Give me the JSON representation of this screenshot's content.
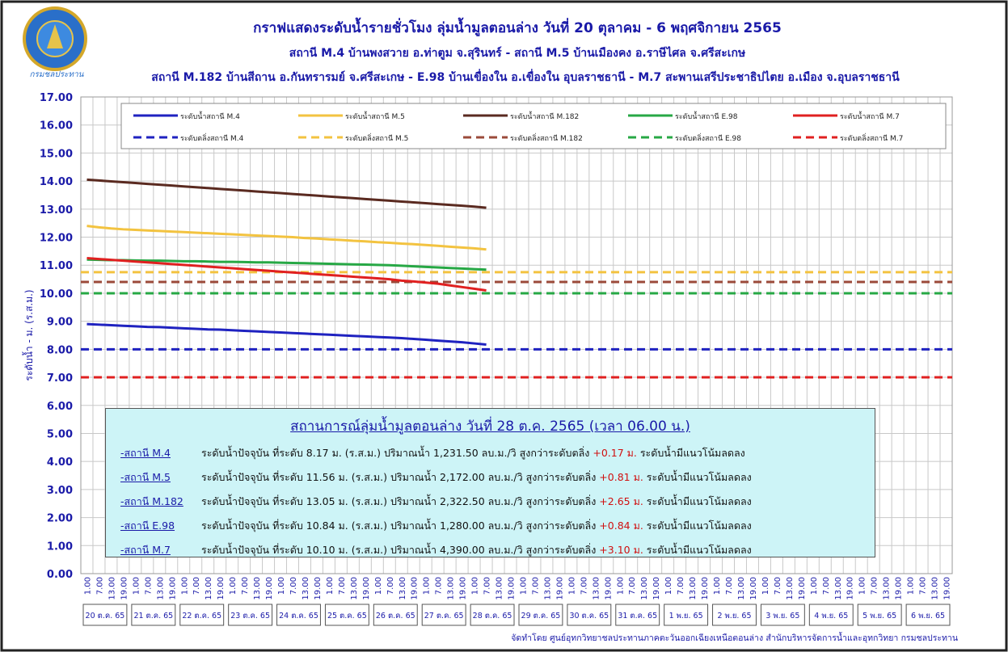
{
  "logo": {
    "text": "กรมชลประทาน"
  },
  "footer": "จัดทำโดย ศูนย์อุทกวิทยาชลประทานภาคตะวันออกเฉียงเหนือตอนล่าง สำนักบริหารจัดการน้ำและอุทกวิทยา กรมชลประทาน",
  "chart_data": {
    "type": "line",
    "title": "กราฟแสดงระดับน้ำรายชั่วโมง ลุ่มน้ำมูลตอนล่าง วันที่ 20 ตุลาคม - 6 พฤศจิกายน 2565",
    "subtitles": [
      "สถานี M.4 บ้านพงสวาย อ.ท่าตูม จ.สุรินทร์ - สถานี M.5 บ้านเมืองคง อ.ราษีไศล จ.ศรีสะเกษ",
      "สถานี M.182 บ้านสีถาน อ.กันทรารมย์ จ.ศรีสะเกษ - E.98 บ้านเขื่องใน อ.เขื่องใน อุบลราชธานี  - M.7 สะพานเสรีประชาธิปไตย อ.เมือง จ.อุบลราชธานี"
    ],
    "y_label": "ระดับน้ำ - ม. (ร.ส.ม.)",
    "categories": [
      "1.00",
      "7.00",
      "13.00",
      "19.00",
      "1.00",
      "7.00",
      "13.00",
      "19.00",
      "1.00",
      "7.00",
      "13.00",
      "19.00",
      "1.00",
      "7.00",
      "13.00",
      "19.00",
      "1.00",
      "7.00",
      "13.00",
      "19.00",
      "1.00",
      "7.00",
      "13.00",
      "19.00",
      "1.00",
      "7.00",
      "13.00",
      "19.00",
      "1.00",
      "7.00",
      "13.00",
      "19.00",
      "1.00",
      "7.00",
      "13.00",
      "19.00",
      "1.00",
      "7.00",
      "13.00",
      "19.00",
      "1.00",
      "7.00",
      "13.00",
      "19.00",
      "1.00",
      "7.00",
      "13.00",
      "19.00",
      "1.00",
      "7.00",
      "13.00",
      "19.00",
      "1.00",
      "7.00",
      "13.00",
      "19.00",
      "1.00",
      "7.00",
      "13.00",
      "19.00",
      "1.00",
      "7.00",
      "13.00",
      "19.00",
      "1.00",
      "7.00",
      "13.00",
      "19.00",
      "1.00",
      "7.00",
      "13.00",
      "19.00"
    ],
    "days": [
      "20 ต.ค. 65",
      "21 ต.ค. 65",
      "22 ต.ค. 65",
      "23 ต.ค. 65",
      "24 ต.ค. 65",
      "25 ต.ค. 65",
      "26 ต.ค. 65",
      "27 ต.ค. 65",
      "28 ต.ค. 65",
      "29 ต.ค. 65",
      "30 ต.ค. 65",
      "31 ต.ค. 65",
      "1 พ.ย. 65",
      "2 พ.ย. 65",
      "3 พ.ย. 65",
      "4 พ.ย. 65",
      "5 พ.ย. 65",
      "6 พ.ย. 65"
    ],
    "ylim": [
      0,
      17
    ],
    "yticks": [
      {
        "value": 0,
        "label": "0.00"
      },
      {
        "value": 1,
        "label": "1.00"
      },
      {
        "value": 2,
        "label": "2.00"
      },
      {
        "value": 3,
        "label": "3.00"
      },
      {
        "value": 4,
        "label": "4.00"
      },
      {
        "value": 5,
        "label": "5.00"
      },
      {
        "value": 6,
        "label": "6.00"
      },
      {
        "value": 7,
        "label": "7.00"
      },
      {
        "value": 8,
        "label": "8.00"
      },
      {
        "value": 9,
        "label": "9.00"
      },
      {
        "value": 10,
        "label": "10.00"
      },
      {
        "value": 11,
        "label": "11.00"
      },
      {
        "value": 12,
        "label": "12.00"
      },
      {
        "value": 13,
        "label": "13.00"
      },
      {
        "value": 14,
        "label": "14.00"
      },
      {
        "value": 15,
        "label": "15.00"
      },
      {
        "value": 16,
        "label": "16.00"
      },
      {
        "value": 17,
        "label": "17.00"
      }
    ],
    "grid": true,
    "series": [
      {
        "name": "ระดับน้ำสถานี M.4",
        "color": "#1f22c0",
        "values": [
          8.9,
          8.88,
          8.86,
          8.84,
          8.82,
          8.8,
          8.79,
          8.77,
          8.75,
          8.73,
          8.71,
          8.7,
          8.68,
          8.66,
          8.64,
          8.62,
          8.6,
          8.58,
          8.56,
          8.54,
          8.52,
          8.5,
          8.48,
          8.46,
          8.44,
          8.42,
          8.4,
          8.37,
          8.34,
          8.31,
          8.28,
          8.25,
          8.21,
          8.17,
          null,
          null,
          null,
          null,
          null,
          null,
          null,
          null,
          null,
          null,
          null,
          null,
          null,
          null,
          null,
          null,
          null,
          null,
          null,
          null,
          null,
          null,
          null,
          null,
          null,
          null,
          null,
          null,
          null,
          null,
          null,
          null,
          null,
          null,
          null,
          null,
          null,
          null
        ]
      },
      {
        "name": "ระดับน้ำสถานี M.5",
        "color": "#f3c340",
        "values": [
          12.4,
          12.35,
          12.31,
          12.28,
          12.26,
          12.24,
          12.22,
          12.2,
          12.18,
          12.16,
          12.14,
          12.12,
          12.1,
          12.08,
          12.06,
          12.04,
          12.02,
          12.0,
          11.97,
          11.95,
          11.92,
          11.9,
          11.87,
          11.85,
          11.82,
          11.8,
          11.77,
          11.75,
          11.72,
          11.69,
          11.66,
          11.63,
          11.6,
          11.56,
          null,
          null,
          null,
          null,
          null,
          null,
          null,
          null,
          null,
          null,
          null,
          null,
          null,
          null,
          null,
          null,
          null,
          null,
          null,
          null,
          null,
          null,
          null,
          null,
          null,
          null,
          null,
          null,
          null,
          null,
          null,
          null,
          null,
          null,
          null,
          null,
          null,
          null
        ]
      },
      {
        "name": "ระดับน้ำสถานี M.182",
        "color": "#5a2a20",
        "values": [
          14.05,
          14.02,
          13.99,
          13.96,
          13.93,
          13.9,
          13.87,
          13.84,
          13.81,
          13.78,
          13.75,
          13.72,
          13.69,
          13.66,
          13.63,
          13.6,
          13.57,
          13.54,
          13.51,
          13.48,
          13.45,
          13.42,
          13.39,
          13.36,
          13.33,
          13.3,
          13.27,
          13.24,
          13.21,
          13.18,
          13.15,
          13.12,
          13.09,
          13.05,
          null,
          null,
          null,
          null,
          null,
          null,
          null,
          null,
          null,
          null,
          null,
          null,
          null,
          null,
          null,
          null,
          null,
          null,
          null,
          null,
          null,
          null,
          null,
          null,
          null,
          null,
          null,
          null,
          null,
          null,
          null,
          null,
          null,
          null,
          null,
          null,
          null,
          null
        ]
      },
      {
        "name": "ระดับน้ำสถานี E.98",
        "color": "#27a845",
        "values": [
          11.2,
          11.19,
          11.18,
          11.18,
          11.17,
          11.16,
          11.16,
          11.15,
          11.14,
          11.14,
          11.13,
          11.12,
          11.12,
          11.11,
          11.1,
          11.1,
          11.09,
          11.08,
          11.07,
          11.06,
          11.05,
          11.04,
          11.03,
          11.02,
          11.01,
          11.0,
          10.98,
          10.96,
          10.94,
          10.92,
          10.9,
          10.88,
          10.86,
          10.84,
          null,
          null,
          null,
          null,
          null,
          null,
          null,
          null,
          null,
          null,
          null,
          null,
          null,
          null,
          null,
          null,
          null,
          null,
          null,
          null,
          null,
          null,
          null,
          null,
          null,
          null,
          null,
          null,
          null,
          null,
          null,
          null,
          null,
          null,
          null,
          null,
          null,
          null
        ]
      },
      {
        "name": "ระดับน้ำสถานี M.7",
        "color": "#e02020",
        "values": [
          11.25,
          11.22,
          11.19,
          11.16,
          11.13,
          11.1,
          11.07,
          11.04,
          11.01,
          10.98,
          10.95,
          10.92,
          10.89,
          10.86,
          10.83,
          10.8,
          10.77,
          10.74,
          10.71,
          10.68,
          10.65,
          10.62,
          10.59,
          10.56,
          10.53,
          10.5,
          10.45,
          10.42,
          10.38,
          10.34,
          10.28,
          10.22,
          10.16,
          10.1,
          null,
          null,
          null,
          null,
          null,
          null,
          null,
          null,
          null,
          null,
          null,
          null,
          null,
          null,
          null,
          null,
          null,
          null,
          null,
          null,
          null,
          null,
          null,
          null,
          null,
          null,
          null,
          null,
          null,
          null,
          null,
          null,
          null,
          null,
          null,
          null,
          null,
          null
        ]
      }
    ],
    "thresholds": [
      {
        "name": "ระดับตลิ่งสถานี M.4",
        "color": "#1f22c0",
        "value": 8.0
      },
      {
        "name": "ระดับตลิ่งสถานี M.5",
        "color": "#f3c340",
        "value": 10.75
      },
      {
        "name": "ระดับตลิ่งสถานี M.182",
        "color": "#9b4a3a",
        "value": 10.4
      },
      {
        "name": "ระดับตลิ่งสถานี E.98",
        "color": "#27a845",
        "value": 10.0
      },
      {
        "name": "ระดับตลิ่งสถานี M.7",
        "color": "#e02020",
        "value": 7.0
      }
    ],
    "summary": {
      "title": "สถานการณ์ลุ่มน้ำมูลตอนล่าง  วันที่ 28 ต.ค. 2565 (เวลา 06.00 น.)",
      "rows": [
        {
          "station": "-สถานี M.4",
          "text": "ระดับน้ำปัจจุบัน ที่ระดับ  8.17 ม. (ร.ส.ม.) ปริมาณน้ำ 1,231.50 ลบ.ม./วิ สูงกว่าระดับตลิ่ง",
          "diff": "+0.17 ม.",
          "trend": "ระดับน้ำมีแนวโน้มลดลง"
        },
        {
          "station": "-สถานี M.5",
          "text": "ระดับน้ำปัจจุบัน ที่ระดับ 11.56 ม. (ร.ส.ม.) ปริมาณน้ำ 2,172.00 ลบ.ม./วิ สูงกว่าระดับตลิ่ง",
          "diff": "+0.81 ม.",
          "trend": "ระดับน้ำมีแนวโน้มลดลง"
        },
        {
          "station": "-สถานี M.182",
          "text": "ระดับน้ำปัจจุบัน ที่ระดับ 13.05 ม. (ร.ส.ม.) ปริมาณน้ำ 2,322.50 ลบ.ม./วิ สูงกว่าระดับตลิ่ง",
          "diff": "+2.65 ม.",
          "trend": "ระดับน้ำมีแนวโน้มลดลง"
        },
        {
          "station": "-สถานี E.98",
          "text": "ระดับน้ำปัจจุบัน ที่ระดับ 10.84 ม. (ร.ส.ม.) ปริมาณน้ำ 1,280.00 ลบ.ม./วิ  สูงกว่าระดับตลิ่ง",
          "diff": "+0.84 ม.",
          "trend": "ระดับน้ำมีแนวโน้มลดลง"
        },
        {
          "station": "-สถานี M.7",
          "text": "ระดับน้ำปัจจุบัน ที่ระดับ 10.10 ม. (ร.ส.ม.) ปริมาณน้ำ 4,390.00 ลบ.ม./วิ  สูงกว่าระดับตลิ่ง",
          "diff": "+3.10 ม.",
          "trend": "ระดับน้ำมีแนวโน้มลดลง"
        }
      ]
    }
  }
}
